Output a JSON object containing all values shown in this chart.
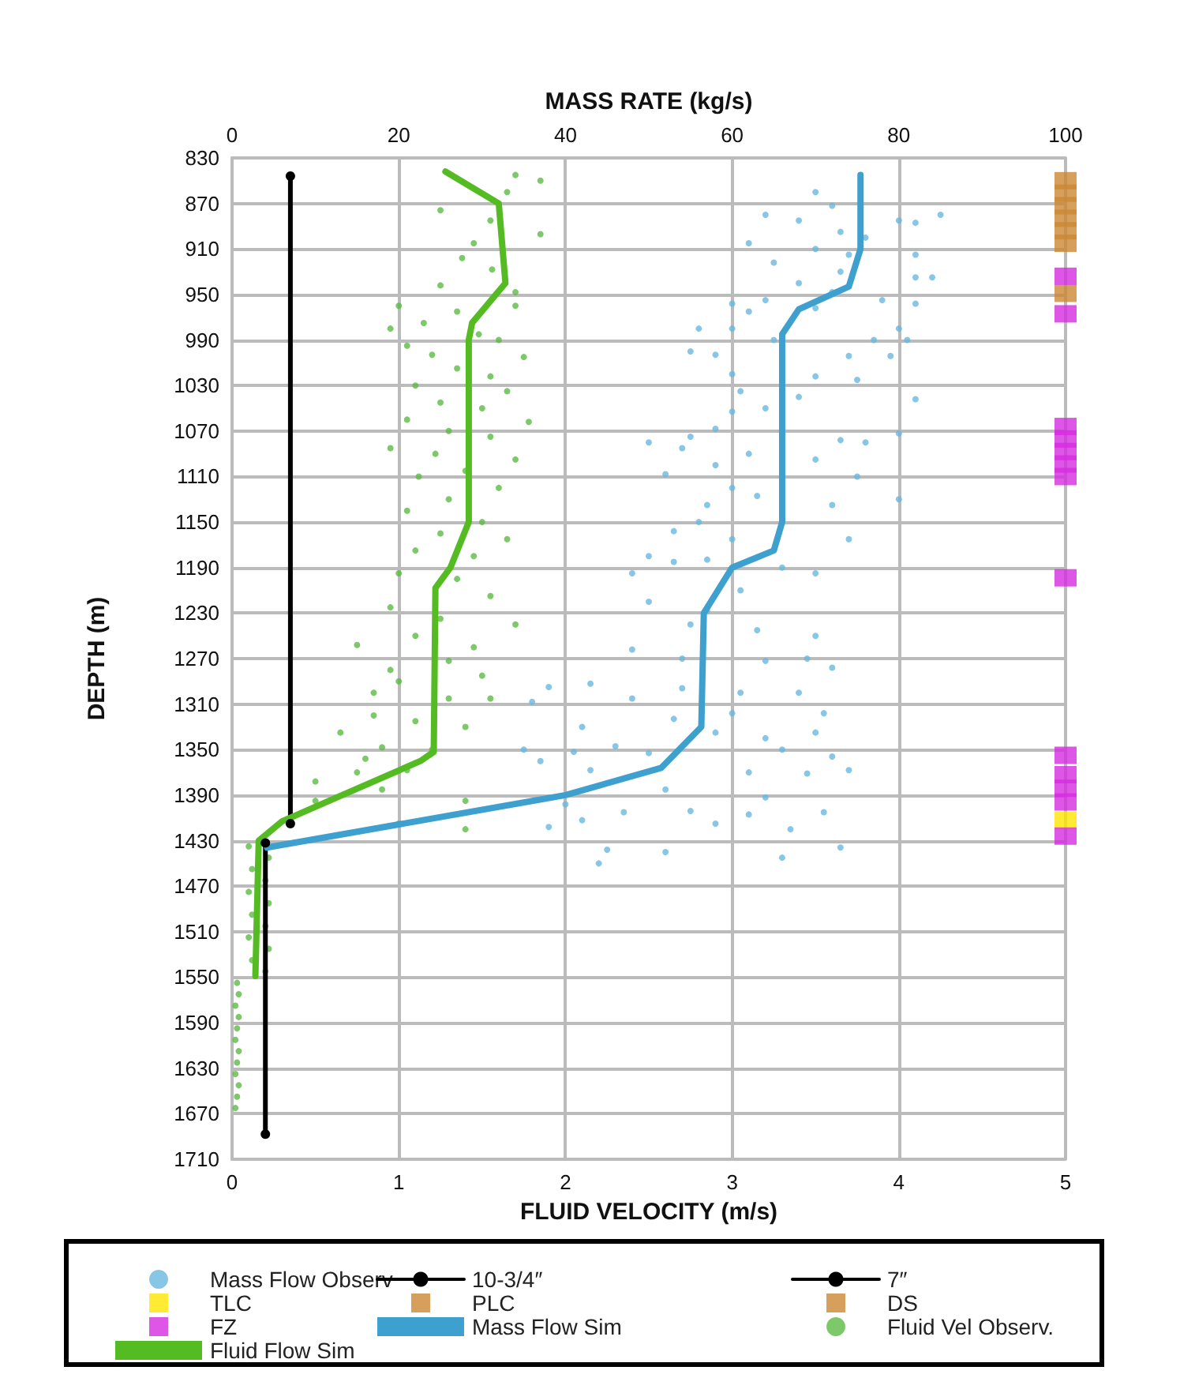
{
  "chart_data": {
    "type": "line",
    "xlabel": "FLUID VELOCITY (m/s)",
    "x2label": "MASS RATE (kg/s)",
    "ylabel": "DEPTH (m)",
    "xlim": [
      0,
      5
    ],
    "xticks": [
      0,
      1,
      2,
      3,
      4,
      5
    ],
    "x2lim": [
      0,
      100
    ],
    "x2ticks": [
      0,
      20,
      40,
      60,
      80,
      100
    ],
    "ylim": [
      1710,
      830
    ],
    "yticks": [
      830,
      870,
      910,
      950,
      990,
      1030,
      1070,
      1110,
      1150,
      1190,
      1230,
      1270,
      1310,
      1350,
      1390,
      1430,
      1470,
      1510,
      1550,
      1590,
      1630,
      1670,
      1710
    ],
    "grid": true,
    "legend": "bottom",
    "series": [
      {
        "name": "Mass Flow Observ",
        "type": "scatter",
        "axis": "x2",
        "marker": "circle",
        "color": "#6ab8de",
        "x": [
          70,
          72,
          64,
          68,
          80,
          85,
          82,
          73,
          76,
          62,
          70,
          74,
          82,
          65,
          73,
          82,
          84,
          68,
          72,
          60,
          64,
          78,
          82,
          62,
          70,
          80,
          56,
          60,
          65,
          77,
          81,
          55,
          58,
          74,
          79,
          60,
          70,
          75,
          61,
          68,
          82,
          64,
          60,
          58,
          55,
          50,
          54,
          73,
          76,
          80,
          62,
          70,
          58,
          52,
          75,
          60,
          63,
          80,
          57,
          72,
          56,
          53,
          60,
          74,
          50,
          53,
          57,
          66,
          70,
          48,
          61,
          50,
          57,
          55,
          63,
          70,
          48,
          54,
          64,
          69,
          72,
          38,
          43,
          54,
          61,
          68,
          36,
          48,
          60,
          53,
          71,
          42,
          58,
          64,
          70,
          35,
          41,
          46,
          50,
          66,
          72,
          37,
          43,
          62,
          69,
          74,
          52,
          64,
          40,
          47,
          55,
          62,
          71,
          38,
          42,
          58,
          67,
          45,
          52,
          73,
          66,
          44
        ],
        "values": [
          860,
          872,
          880,
          885,
          885,
          880,
          887,
          895,
          900,
          905,
          910,
          915,
          915,
          922,
          930,
          935,
          935,
          940,
          948,
          958,
          955,
          955,
          958,
          965,
          962,
          980,
          980,
          980,
          990,
          990,
          990,
          1000,
          1003,
          1004,
          1004,
          1020,
          1022,
          1025,
          1035,
          1040,
          1042,
          1050,
          1053,
          1068,
          1075,
          1080,
          1085,
          1078,
          1080,
          1072,
          1090,
          1095,
          1100,
          1108,
          1110,
          1120,
          1127,
          1130,
          1135,
          1135,
          1150,
          1158,
          1165,
          1165,
          1180,
          1185,
          1183,
          1190,
          1195,
          1195,
          1210,
          1220,
          1228,
          1240,
          1245,
          1250,
          1262,
          1270,
          1272,
          1270,
          1278,
          1295,
          1292,
          1296,
          1300,
          1300,
          1308,
          1305,
          1318,
          1323,
          1318,
          1330,
          1335,
          1340,
          1335,
          1350,
          1352,
          1347,
          1353,
          1350,
          1356,
          1360,
          1368,
          1370,
          1371,
          1368,
          1385,
          1392,
          1398,
          1405,
          1404,
          1407,
          1405,
          1418,
          1412,
          1415,
          1420,
          1438,
          1440,
          1436,
          1445,
          1450
        ]
      },
      {
        "name": "10-3/4″",
        "marker": "circle",
        "color": "#000000",
        "x": [
          0.35,
          0.35
        ],
        "values": [
          846,
          1415
        ]
      },
      {
        "name": "7″",
        "marker": "circle",
        "color": "#000000",
        "x": [
          0.2,
          0.2
        ],
        "values": [
          1432,
          1688
        ]
      },
      {
        "name": "TLC",
        "type": "scatter",
        "marker": "square",
        "color": "#ffe600",
        "x": [
          5
        ],
        "values": [
          1412
        ]
      },
      {
        "name": "PLC",
        "type": "scatter",
        "marker": "square",
        "color": "#cc8833",
        "x": [
          5
        ],
        "values": [
          949
        ]
      },
      {
        "name": "DS",
        "type": "scatter",
        "marker": "square",
        "color": "#cc8833",
        "x": [
          5,
          5,
          5,
          5,
          5,
          5
        ],
        "values": [
          850,
          861,
          872,
          883,
          894,
          905
        ]
      },
      {
        "name": "FZ",
        "type": "scatter",
        "marker": "square",
        "color": "#d62ce0",
        "x": [
          5,
          5,
          5,
          5,
          5,
          5,
          5,
          5,
          5,
          5,
          5,
          5,
          5
        ],
        "values": [
          934,
          967,
          1066,
          1077,
          1088,
          1099,
          1110,
          1199,
          1355,
          1372,
          1384,
          1396,
          1426
        ]
      },
      {
        "name": "Mass Flow Sim",
        "axis": "x2",
        "marker": "none",
        "color": "#3ea0cf",
        "x": [
          75.4,
          75.4,
          74,
          68,
          66,
          66,
          65,
          60,
          56.6,
          56.3,
          51.5,
          40,
          4.2
        ],
        "values": [
          845,
          910,
          943,
          963,
          985,
          1150,
          1175,
          1190,
          1230,
          1330,
          1366,
          1390,
          1436
        ]
      },
      {
        "name": "Fluid Vel Observ.",
        "type": "scatter",
        "marker": "circle",
        "color": "#5dbb45",
        "x": [
          1.7,
          1.85,
          1.65,
          1.25,
          1.55,
          1.85,
          1.45,
          1.38,
          1.56,
          1.25,
          1.7,
          1.0,
          1.35,
          1.7,
          1.15,
          0.95,
          1.48,
          1.6,
          1.05,
          1.2,
          1.75,
          1.35,
          1.55,
          1.1,
          1.65,
          1.25,
          1.5,
          1.05,
          1.78,
          1.3,
          1.55,
          0.95,
          1.22,
          1.7,
          1.4,
          1.12,
          1.6,
          1.3,
          1.05,
          1.5,
          1.25,
          1.65,
          1.1,
          1.45,
          1.0,
          1.35,
          1.55,
          0.95,
          1.25,
          1.7,
          1.1,
          0.75,
          1.45,
          1.3,
          0.95,
          1.5,
          1.0,
          0.85,
          1.3,
          1.55,
          0.85,
          1.1,
          1.4,
          0.65,
          0.9,
          1.2,
          0.8,
          0.75,
          1.05,
          0.5,
          0.9,
          1.4,
          1.0,
          1.4,
          0.5,
          0.1,
          0.22,
          0.12,
          0.2,
          0.1,
          0.22,
          0.12,
          0.2,
          0.1,
          0.22,
          0.12,
          0.2,
          0.03,
          0.04,
          0.02,
          0.04,
          0.03,
          0.02,
          0.04,
          0.03,
          0.02,
          0.04,
          0.03,
          0.02
        ],
        "values": [
          845,
          850,
          860,
          876,
          885,
          897,
          905,
          918,
          928,
          942,
          948,
          960,
          965,
          960,
          975,
          980,
          985,
          990,
          995,
          1003,
          1005,
          1015,
          1022,
          1030,
          1035,
          1045,
          1050,
          1060,
          1062,
          1070,
          1075,
          1085,
          1090,
          1095,
          1105,
          1110,
          1120,
          1130,
          1140,
          1150,
          1160,
          1165,
          1175,
          1180,
          1195,
          1200,
          1215,
          1225,
          1235,
          1240,
          1250,
          1258,
          1260,
          1272,
          1280,
          1285,
          1290,
          1300,
          1305,
          1305,
          1320,
          1325,
          1330,
          1335,
          1348,
          1350,
          1358,
          1370,
          1368,
          1378,
          1385,
          1395,
          1415,
          1420,
          1395,
          1435,
          1445,
          1455,
          1465,
          1475,
          1485,
          1495,
          1505,
          1515,
          1525,
          1535,
          1545,
          1555,
          1565,
          1575,
          1585,
          1595,
          1605,
          1615,
          1625,
          1635,
          1645,
          1655,
          1665
        ]
      },
      {
        "name": "Fluid Flow Sim",
        "marker": "none",
        "color": "#55bb22",
        "x": [
          1.28,
          1.6,
          1.64,
          1.44,
          1.42,
          1.42,
          1.31,
          1.22,
          1.21,
          1.13,
          0.3,
          0.16,
          0.14
        ],
        "values": [
          842,
          870,
          940,
          975,
          990,
          1150,
          1190,
          1208,
          1352,
          1360,
          1413,
          1430,
          1549
        ]
      }
    ]
  }
}
